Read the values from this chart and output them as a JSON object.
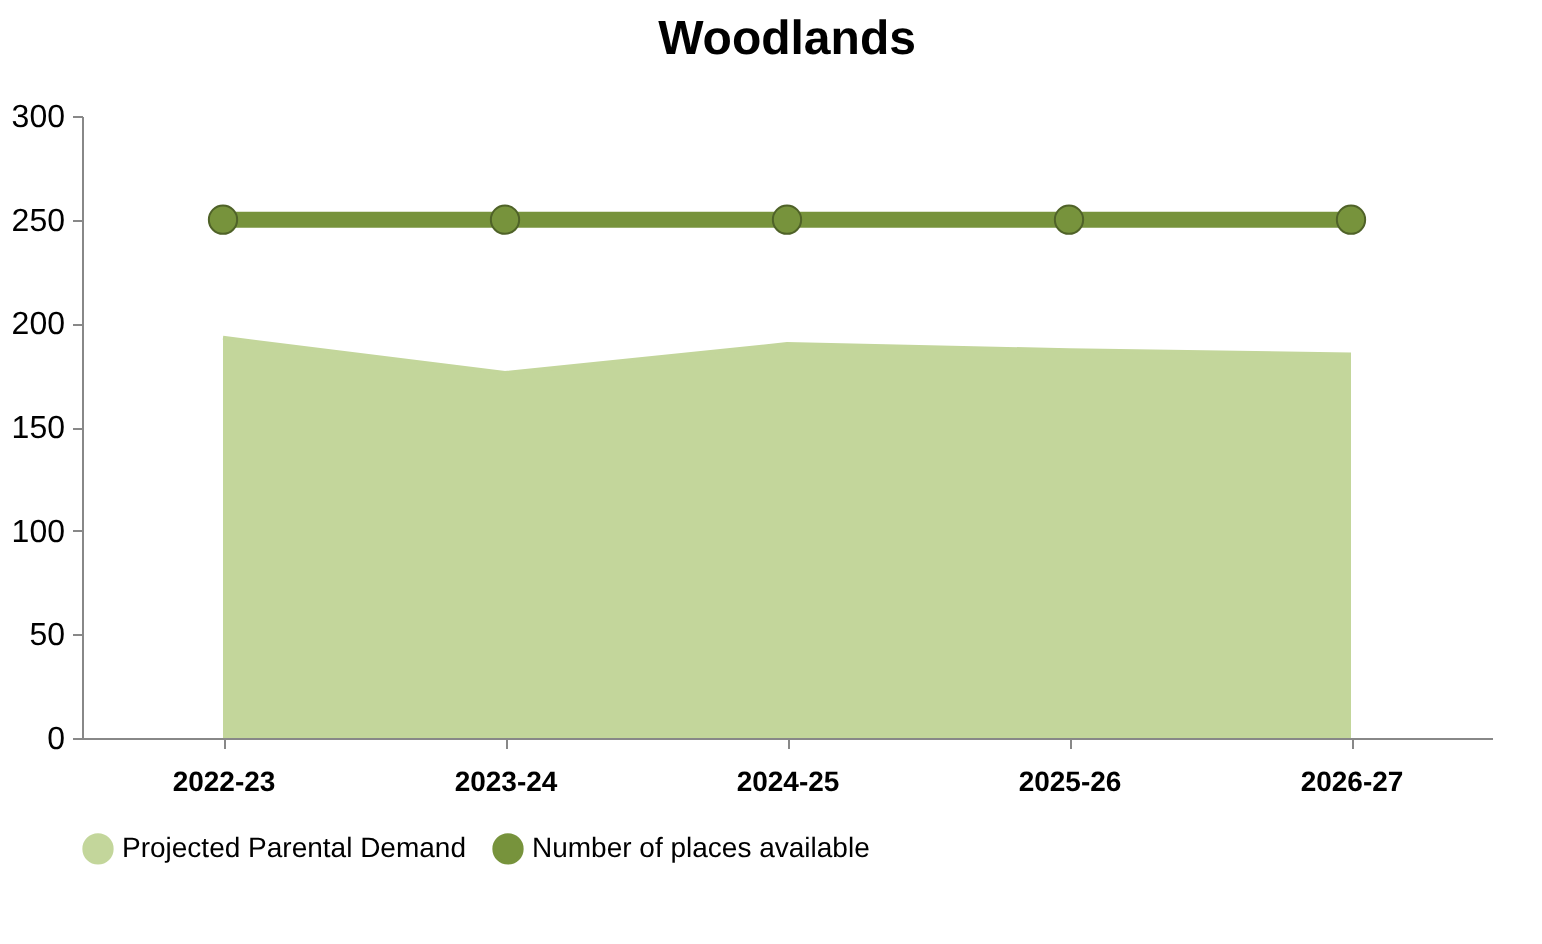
{
  "chart_data": {
    "type": "area",
    "title": "Woodlands",
    "categories": [
      "2022-23",
      "2023-24",
      "2024-25",
      "2025-26",
      "2026-27"
    ],
    "series": [
      {
        "name": "Projected Parental Demand",
        "color": "#c3d69b",
        "values": [
          193,
          176,
          190,
          187,
          185
        ]
      },
      {
        "name": "Number of places available",
        "type": "line",
        "color": "#77933c",
        "values": [
          250,
          250,
          250,
          250,
          250
        ],
        "marker": "circle"
      }
    ],
    "ylim": [
      0,
      300
    ],
    "yticks": [
      0,
      50,
      100,
      150,
      200,
      250,
      300
    ],
    "grid": false,
    "legend": "bottom"
  }
}
